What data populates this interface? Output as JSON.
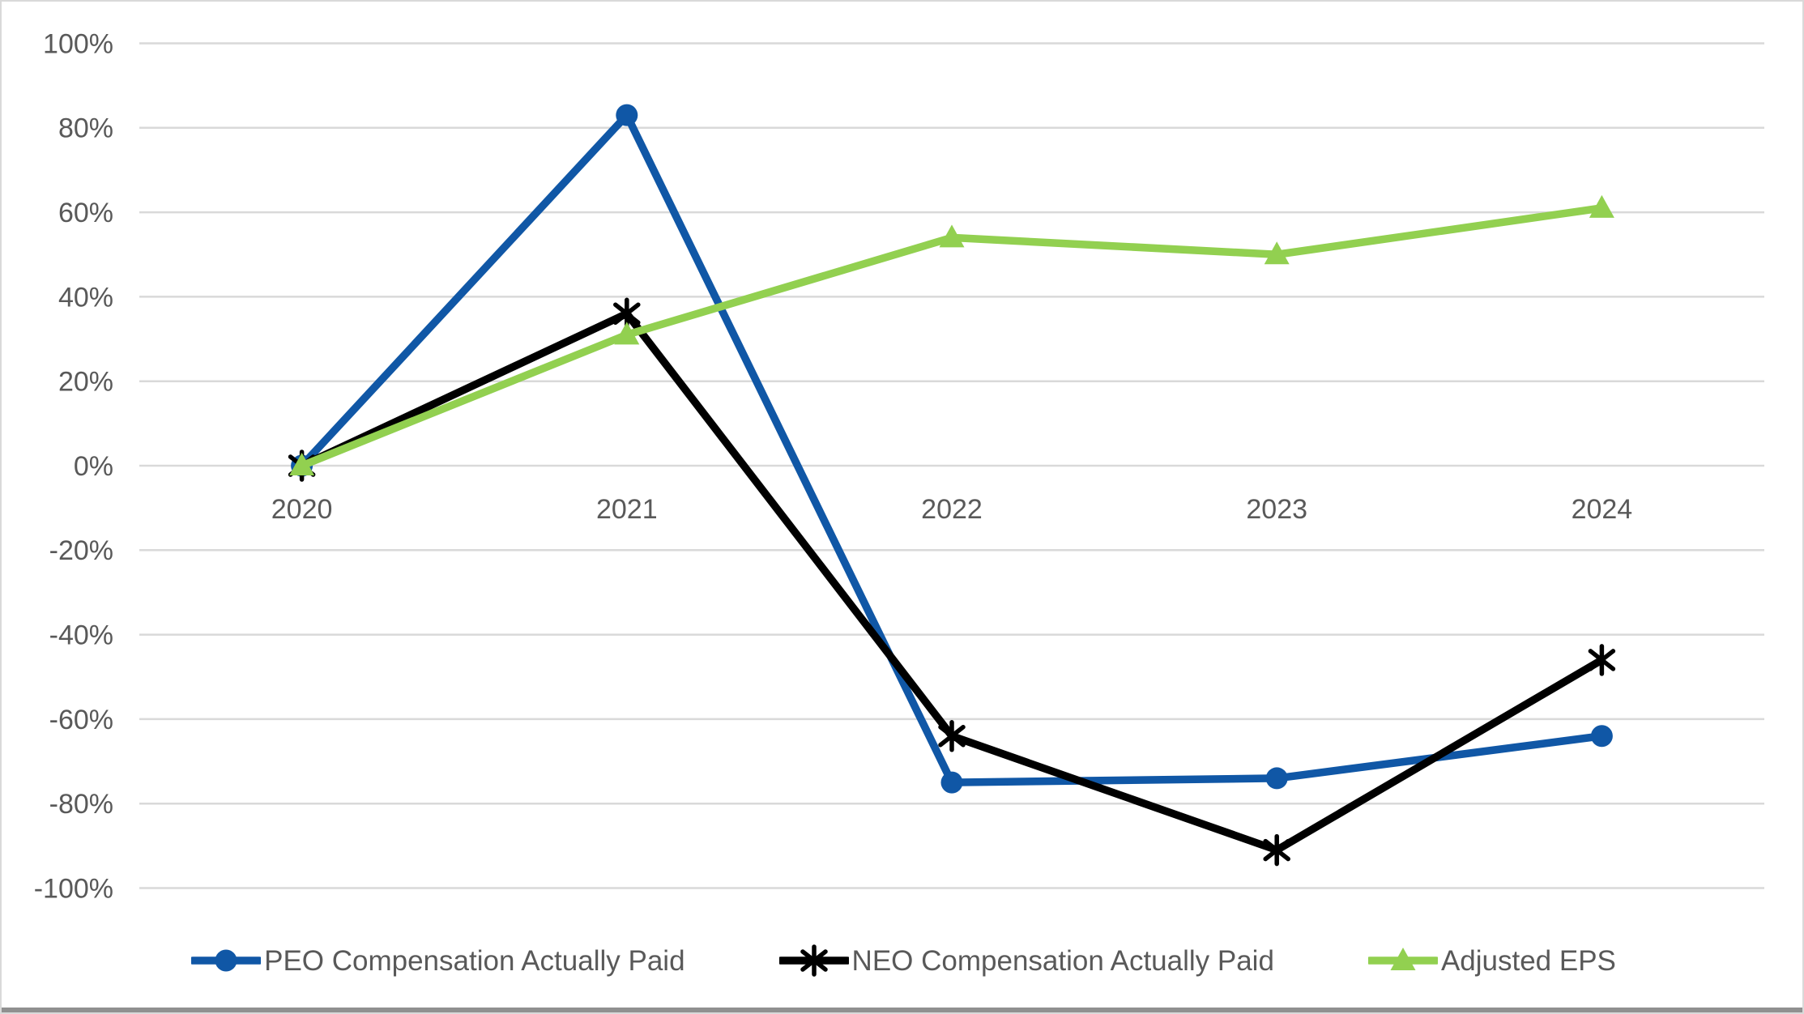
{
  "chart_data": {
    "type": "line",
    "x": [
      "2020",
      "2021",
      "2022",
      "2023",
      "2024"
    ],
    "series": [
      {
        "name": "PEO Compensation Actually Paid",
        "color": "#1057A6",
        "marker": "circle",
        "values": [
          0,
          83,
          -75,
          -74,
          -64
        ]
      },
      {
        "name": "NEO Compensation Actually Paid",
        "color": "#000000",
        "marker": "asterisk",
        "values": [
          0,
          36,
          -64,
          -91,
          -46
        ]
      },
      {
        "name": "Adjusted EPS",
        "color": "#92D050",
        "marker": "triangle",
        "values": [
          0,
          31,
          54,
          50,
          61
        ]
      }
    ],
    "ylim": [
      -100,
      100
    ],
    "ytick_step": 20,
    "ytick_labels": [
      "100%",
      "80%",
      "60%",
      "40%",
      "20%",
      "0%",
      "-20%",
      "-40%",
      "-60%",
      "-80%",
      "-100%"
    ],
    "xlabel": "",
    "ylabel": "",
    "grid": "horizontal",
    "legend_position": "bottom",
    "colors": {
      "axis_text": "#595959",
      "gridline": "#d9d9d9",
      "background": "#ffffff",
      "frame_border": "#d9d9d9",
      "bottom_edge": "#909090"
    }
  }
}
